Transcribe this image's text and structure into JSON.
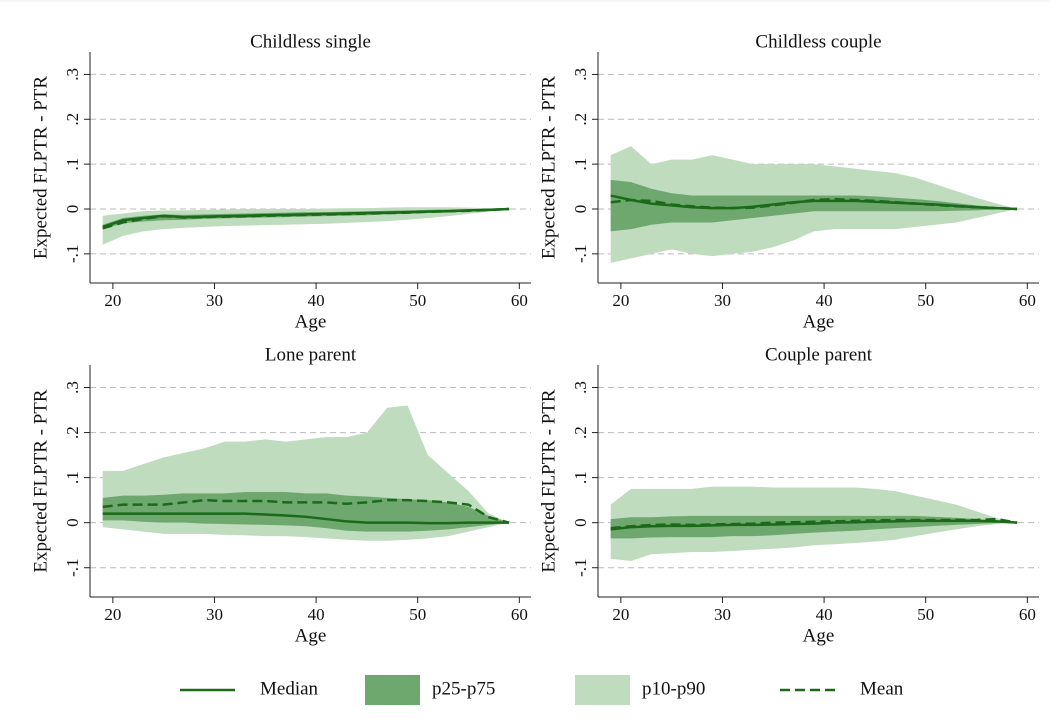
{
  "chart_data": [
    {
      "type": "band-line",
      "title": "Childless single",
      "xlabel": "Age",
      "ylabel": "Expected FLPTR - PTR",
      "x": [
        19,
        21,
        23,
        25,
        27,
        29,
        31,
        33,
        35,
        37,
        39,
        41,
        43,
        45,
        47,
        49,
        51,
        53,
        55,
        57,
        59
      ],
      "p90": [
        -0.015,
        -0.01,
        -0.005,
        -0.003,
        -0.003,
        -0.002,
        -0.001,
        0,
        0,
        0,
        0,
        0.001,
        0.002,
        0.002,
        0.003,
        0.004,
        0.004,
        0.004,
        0.003,
        0.002,
        0
      ],
      "p10": [
        -0.08,
        -0.06,
        -0.05,
        -0.045,
        -0.042,
        -0.04,
        -0.038,
        -0.037,
        -0.036,
        -0.035,
        -0.034,
        -0.033,
        -0.031,
        -0.029,
        -0.027,
        -0.024,
        -0.02,
        -0.016,
        -0.011,
        -0.006,
        0
      ],
      "p75": [
        -0.035,
        -0.02,
        -0.015,
        -0.012,
        -0.013,
        -0.012,
        -0.011,
        -0.01,
        -0.009,
        -0.008,
        -0.007,
        -0.007,
        -0.006,
        -0.005,
        -0.004,
        -0.003,
        -0.002,
        -0.001,
        0,
        0,
        0
      ],
      "p25": [
        -0.045,
        -0.032,
        -0.028,
        -0.025,
        -0.024,
        -0.022,
        -0.021,
        -0.02,
        -0.019,
        -0.018,
        -0.017,
        -0.016,
        -0.015,
        -0.014,
        -0.012,
        -0.011,
        -0.009,
        -0.007,
        -0.005,
        -0.003,
        0
      ],
      "median": [
        -0.04,
        -0.025,
        -0.02,
        -0.015,
        -0.018,
        -0.017,
        -0.016,
        -0.015,
        -0.014,
        -0.013,
        -0.012,
        -0.011,
        -0.01,
        -0.009,
        -0.008,
        -0.007,
        -0.006,
        -0.005,
        -0.003,
        -0.002,
        0
      ],
      "mean": [
        -0.043,
        -0.03,
        -0.022,
        -0.016,
        -0.019,
        -0.018,
        -0.017,
        -0.016,
        -0.015,
        -0.014,
        -0.013,
        -0.012,
        -0.011,
        -0.01,
        -0.009,
        -0.008,
        -0.006,
        -0.005,
        -0.004,
        -0.002,
        0
      ],
      "xlim": [
        17.75,
        61.15
      ],
      "ylim": [
        -0.165,
        0.35
      ],
      "xticks": [
        20,
        30,
        40,
        50,
        60
      ],
      "yticks": [
        {
          "value": -0.1,
          "label": "-.1"
        },
        0,
        {
          "value": 0.1,
          "label": ".1"
        },
        {
          "value": 0.2,
          "label": ".2"
        },
        {
          "value": 0.3,
          "label": ".3"
        }
      ],
      "grid": true
    },
    {
      "type": "band-line",
      "title": "Childless couple",
      "xlabel": "Age",
      "ylabel": "Expected FLPTR - PTR",
      "x": [
        19,
        21,
        23,
        25,
        27,
        29,
        31,
        33,
        35,
        37,
        39,
        41,
        43,
        45,
        47,
        49,
        51,
        53,
        55,
        57,
        59
      ],
      "p90": [
        0.12,
        0.14,
        0.1,
        0.11,
        0.11,
        0.12,
        0.11,
        0.1,
        0.1,
        0.1,
        0.1,
        0.095,
        0.09,
        0.085,
        0.08,
        0.07,
        0.055,
        0.04,
        0.025,
        0.012,
        0
      ],
      "p10": [
        -0.12,
        -0.11,
        -0.1,
        -0.09,
        -0.1,
        -0.105,
        -0.1,
        -0.095,
        -0.085,
        -0.07,
        -0.05,
        -0.045,
        -0.045,
        -0.045,
        -0.045,
        -0.04,
        -0.035,
        -0.03,
        -0.02,
        -0.01,
        0
      ],
      "p75": [
        0.065,
        0.06,
        0.045,
        0.035,
        0.03,
        0.03,
        0.03,
        0.03,
        0.03,
        0.03,
        0.03,
        0.03,
        0.03,
        0.028,
        0.025,
        0.022,
        0.018,
        0.013,
        0.008,
        0.004,
        0
      ],
      "p25": [
        -0.05,
        -0.045,
        -0.035,
        -0.03,
        -0.03,
        -0.03,
        -0.025,
        -0.02,
        -0.015,
        -0.01,
        -0.005,
        -0.005,
        -0.005,
        -0.005,
        -0.005,
        -0.005,
        -0.005,
        -0.004,
        -0.003,
        -0.001,
        0
      ],
      "median": [
        0.03,
        0.02,
        0.012,
        0.008,
        0.004,
        0.002,
        0.002,
        0.005,
        0.01,
        0.015,
        0.018,
        0.018,
        0.018,
        0.016,
        0.014,
        0.012,
        0.01,
        0.007,
        0.004,
        0.002,
        0
      ],
      "mean": [
        0.015,
        0.02,
        0.018,
        0.01,
        0.006,
        0.003,
        0.002,
        0.003,
        0.008,
        0.014,
        0.02,
        0.022,
        0.02,
        0.018,
        0.015,
        0.012,
        0.009,
        0.006,
        0.004,
        0.002,
        0
      ],
      "xlim": [
        17.75,
        61.15
      ],
      "ylim": [
        -0.165,
        0.35
      ],
      "xticks": [
        20,
        30,
        40,
        50,
        60
      ],
      "yticks": [
        {
          "value": -0.1,
          "label": "-.1"
        },
        0,
        {
          "value": 0.1,
          "label": ".1"
        },
        {
          "value": 0.2,
          "label": ".2"
        },
        {
          "value": 0.3,
          "label": ".3"
        }
      ],
      "grid": true
    },
    {
      "type": "band-line",
      "title": "Lone parent",
      "xlabel": "Age",
      "ylabel": "Expected FLPTR - PTR",
      "x": [
        19,
        21,
        23,
        25,
        27,
        29,
        31,
        33,
        35,
        37,
        39,
        41,
        43,
        45,
        47,
        49,
        51,
        53,
        55,
        57,
        59
      ],
      "p90": [
        0.115,
        0.115,
        0.13,
        0.145,
        0.155,
        0.165,
        0.18,
        0.18,
        0.185,
        0.18,
        0.185,
        0.19,
        0.19,
        0.2,
        0.255,
        0.26,
        0.15,
        0.11,
        0.07,
        0.02,
        0
      ],
      "p10": [
        -0.01,
        -0.015,
        -0.02,
        -0.025,
        -0.025,
        -0.025,
        -0.027,
        -0.028,
        -0.03,
        -0.03,
        -0.032,
        -0.035,
        -0.038,
        -0.04,
        -0.04,
        -0.038,
        -0.035,
        -0.03,
        -0.02,
        -0.01,
        0
      ],
      "p75": [
        0.055,
        0.06,
        0.06,
        0.062,
        0.065,
        0.065,
        0.065,
        0.068,
        0.068,
        0.068,
        0.065,
        0.065,
        0.06,
        0.058,
        0.055,
        0.052,
        0.05,
        0.045,
        0.035,
        0.015,
        0
      ],
      "p25": [
        0.005,
        0.005,
        0.002,
        0,
        0,
        -0.002,
        -0.003,
        -0.004,
        -0.005,
        -0.006,
        -0.008,
        -0.012,
        -0.018,
        -0.02,
        -0.02,
        -0.02,
        -0.018,
        -0.015,
        -0.01,
        -0.005,
        0
      ],
      "median": [
        0.02,
        0.02,
        0.02,
        0.02,
        0.02,
        0.02,
        0.02,
        0.02,
        0.018,
        0.016,
        0.013,
        0.008,
        0.003,
        0,
        0,
        0,
        -0.001,
        -0.001,
        0,
        0,
        0
      ],
      "mean": [
        0.035,
        0.04,
        0.04,
        0.04,
        0.045,
        0.05,
        0.048,
        0.048,
        0.048,
        0.045,
        0.045,
        0.045,
        0.042,
        0.045,
        0.05,
        0.05,
        0.048,
        0.045,
        0.04,
        0.012,
        0
      ],
      "xlim": [
        17.75,
        61.15
      ],
      "ylim": [
        -0.165,
        0.35
      ],
      "xticks": [
        20,
        30,
        40,
        50,
        60
      ],
      "yticks": [
        {
          "value": -0.1,
          "label": "-.1"
        },
        0,
        {
          "value": 0.1,
          "label": ".1"
        },
        {
          "value": 0.2,
          "label": ".2"
        },
        {
          "value": 0.3,
          "label": ".3"
        }
      ],
      "grid": true
    },
    {
      "type": "band-line",
      "title": "Couple parent",
      "xlabel": "Age",
      "ylabel": "Expected FLPTR - PTR",
      "x": [
        19,
        21,
        23,
        25,
        27,
        29,
        31,
        33,
        35,
        37,
        39,
        41,
        43,
        45,
        47,
        49,
        51,
        53,
        55,
        57,
        59
      ],
      "p90": [
        0.04,
        0.075,
        0.075,
        0.075,
        0.075,
        0.08,
        0.08,
        0.08,
        0.078,
        0.078,
        0.078,
        0.078,
        0.078,
        0.075,
        0.07,
        0.06,
        0.05,
        0.04,
        0.025,
        0.01,
        0
      ],
      "p10": [
        -0.08,
        -0.085,
        -0.07,
        -0.068,
        -0.065,
        -0.065,
        -0.063,
        -0.06,
        -0.058,
        -0.055,
        -0.05,
        -0.048,
        -0.045,
        -0.042,
        -0.038,
        -0.03,
        -0.022,
        -0.015,
        -0.008,
        -0.003,
        0
      ],
      "p75": [
        0.008,
        0.012,
        0.012,
        0.014,
        0.015,
        0.015,
        0.015,
        0.015,
        0.015,
        0.015,
        0.015,
        0.015,
        0.015,
        0.015,
        0.015,
        0.015,
        0.013,
        0.011,
        0.008,
        0.004,
        0
      ],
      "p25": [
        -0.035,
        -0.035,
        -0.033,
        -0.032,
        -0.032,
        -0.032,
        -0.03,
        -0.03,
        -0.028,
        -0.025,
        -0.022,
        -0.02,
        -0.018,
        -0.015,
        -0.012,
        -0.01,
        -0.007,
        -0.005,
        -0.003,
        -0.001,
        0
      ],
      "median": [
        -0.015,
        -0.01,
        -0.008,
        -0.007,
        -0.007,
        -0.006,
        -0.005,
        -0.005,
        -0.004,
        -0.003,
        -0.002,
        0,
        0.001,
        0.002,
        0.003,
        0.004,
        0.004,
        0.004,
        0.004,
        0.003,
        0
      ],
      "mean": [
        -0.012,
        -0.008,
        -0.005,
        -0.004,
        -0.005,
        -0.004,
        -0.003,
        -0.002,
        0,
        0.001,
        0.002,
        0.003,
        0.004,
        0.005,
        0.006,
        0.006,
        0.006,
        0.006,
        0.006,
        0.008,
        0
      ],
      "xlim": [
        17.75,
        61.15
      ],
      "ylim": [
        -0.165,
        0.35
      ],
      "xticks": [
        20,
        30,
        40,
        50,
        60
      ],
      "yticks": [
        {
          "value": -0.1,
          "label": "-.1"
        },
        0,
        {
          "value": 0.1,
          "label": ".1"
        },
        {
          "value": 0.2,
          "label": ".2"
        },
        {
          "value": 0.3,
          "label": ".3"
        }
      ],
      "grid": true
    }
  ],
  "legend": [
    {
      "name": "Median",
      "color": "#1a6a1a",
      "style": "solid"
    },
    {
      "name": "p25-p75",
      "color": "#6fa86f",
      "style": "band"
    },
    {
      "name": "p10-p90",
      "color": "#bfdcbf",
      "style": "band"
    },
    {
      "name": "Mean",
      "color": "#1a6a1a",
      "style": "dashed"
    }
  ]
}
